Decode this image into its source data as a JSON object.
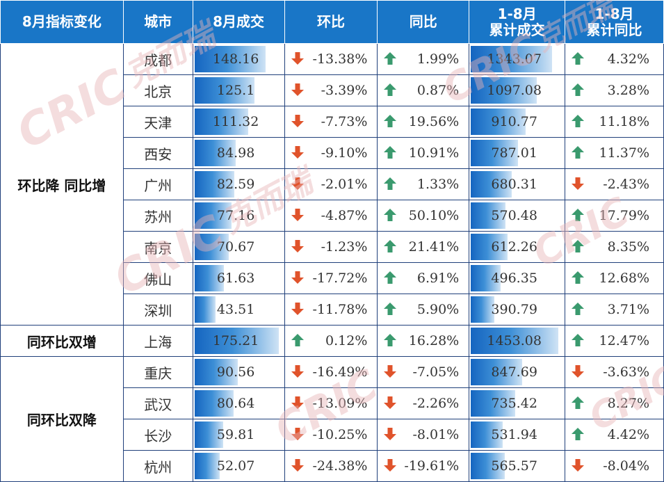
{
  "headers": {
    "indicator": "8月指标变化",
    "city": "城市",
    "aug_volume": "8月成交",
    "mom": "环比",
    "yoy": "同比",
    "cum_volume_line1": "1-8月",
    "cum_volume_line2": "累计成交",
    "cum_yoy_line1": "1-8月",
    "cum_yoy_line2": "累计同比"
  },
  "watermark": {
    "brand": "CRIC",
    "cn": "克而瑞"
  },
  "colors": {
    "header_bg": "#1976c7",
    "up_arrow": "#3a9a6e",
    "down_arrow": "#e0532b",
    "bar_dark": "#1565c0",
    "bar_light": "#cfe3f5"
  },
  "groups": [
    {
      "label": "环比降 同比增",
      "rows": [
        {
          "city": "成都",
          "aug": "148.16",
          "aug_value": 148.16,
          "mom": "-13.38%",
          "mom_dir": "down",
          "yoy": "1.99%",
          "yoy_dir": "up",
          "cum": "1343.07",
          "cum_value": 1343.07,
          "cum_yoy": "4.32%",
          "cum_yoy_dir": "up"
        },
        {
          "city": "北京",
          "aug": "125.1",
          "aug_value": 125.1,
          "mom": "-3.39%",
          "mom_dir": "down",
          "yoy": "0.87%",
          "yoy_dir": "up",
          "cum": "1097.08",
          "cum_value": 1097.08,
          "cum_yoy": "3.28%",
          "cum_yoy_dir": "up"
        },
        {
          "city": "天津",
          "aug": "111.32",
          "aug_value": 111.32,
          "mom": "-7.73%",
          "mom_dir": "down",
          "yoy": "19.56%",
          "yoy_dir": "up",
          "cum": "910.77",
          "cum_value": 910.77,
          "cum_yoy": "11.18%",
          "cum_yoy_dir": "up"
        },
        {
          "city": "西安",
          "aug": "84.98",
          "aug_value": 84.98,
          "mom": "-9.10%",
          "mom_dir": "down",
          "yoy": "10.91%",
          "yoy_dir": "up",
          "cum": "787.01",
          "cum_value": 787.01,
          "cum_yoy": "11.37%",
          "cum_yoy_dir": "up"
        },
        {
          "city": "广州",
          "aug": "82.59",
          "aug_value": 82.59,
          "mom": "-2.01%",
          "mom_dir": "down",
          "yoy": "1.33%",
          "yoy_dir": "up",
          "cum": "680.31",
          "cum_value": 680.31,
          "cum_yoy": "-2.43%",
          "cum_yoy_dir": "down"
        },
        {
          "city": "苏州",
          "aug": "77.16",
          "aug_value": 77.16,
          "mom": "-4.87%",
          "mom_dir": "down",
          "yoy": "50.10%",
          "yoy_dir": "up",
          "cum": "570.48",
          "cum_value": 570.48,
          "cum_yoy": "17.79%",
          "cum_yoy_dir": "up"
        },
        {
          "city": "南京",
          "aug": "70.67",
          "aug_value": 70.67,
          "mom": "-1.23%",
          "mom_dir": "down",
          "yoy": "21.41%",
          "yoy_dir": "up",
          "cum": "612.26",
          "cum_value": 612.26,
          "cum_yoy": "8.35%",
          "cum_yoy_dir": "up"
        },
        {
          "city": "佛山",
          "aug": "61.63",
          "aug_value": 61.63,
          "mom": "-17.72%",
          "mom_dir": "down",
          "yoy": "6.91%",
          "yoy_dir": "up",
          "cum": "496.35",
          "cum_value": 496.35,
          "cum_yoy": "12.68%",
          "cum_yoy_dir": "up"
        },
        {
          "city": "深圳",
          "aug": "43.51",
          "aug_value": 43.51,
          "mom": "-11.78%",
          "mom_dir": "down",
          "yoy": "5.90%",
          "yoy_dir": "up",
          "cum": "390.79",
          "cum_value": 390.79,
          "cum_yoy": "3.71%",
          "cum_yoy_dir": "up"
        }
      ]
    },
    {
      "label": "同环比双增",
      "rows": [
        {
          "city": "上海",
          "aug": "175.21",
          "aug_value": 175.21,
          "mom": "0.12%",
          "mom_dir": "up",
          "yoy": "16.28%",
          "yoy_dir": "up",
          "cum": "1453.08",
          "cum_value": 1453.08,
          "cum_yoy": "12.47%",
          "cum_yoy_dir": "up"
        }
      ]
    },
    {
      "label": "同环比双降",
      "rows": [
        {
          "city": "重庆",
          "aug": "90.56",
          "aug_value": 90.56,
          "mom": "-16.49%",
          "mom_dir": "down",
          "yoy": "-7.05%",
          "yoy_dir": "down",
          "cum": "847.69",
          "cum_value": 847.69,
          "cum_yoy": "-3.63%",
          "cum_yoy_dir": "down"
        },
        {
          "city": "武汉",
          "aug": "80.64",
          "aug_value": 80.64,
          "mom": "-13.09%",
          "mom_dir": "down",
          "yoy": "-2.26%",
          "yoy_dir": "down",
          "cum": "735.42",
          "cum_value": 735.42,
          "cum_yoy": "8.27%",
          "cum_yoy_dir": "up"
        },
        {
          "city": "长沙",
          "aug": "59.81",
          "aug_value": 59.81,
          "mom": "-10.25%",
          "mom_dir": "down",
          "yoy": "-8.01%",
          "yoy_dir": "down",
          "cum": "531.94",
          "cum_value": 531.94,
          "cum_yoy": "4.42%",
          "cum_yoy_dir": "up"
        },
        {
          "city": "杭州",
          "aug": "52.07",
          "aug_value": 52.07,
          "mom": "-24.38%",
          "mom_dir": "down",
          "yoy": "-19.61%",
          "yoy_dir": "down",
          "cum": "565.57",
          "cum_value": 565.57,
          "cum_yoy": "-8.04%",
          "cum_yoy_dir": "down"
        }
      ]
    }
  ]
}
